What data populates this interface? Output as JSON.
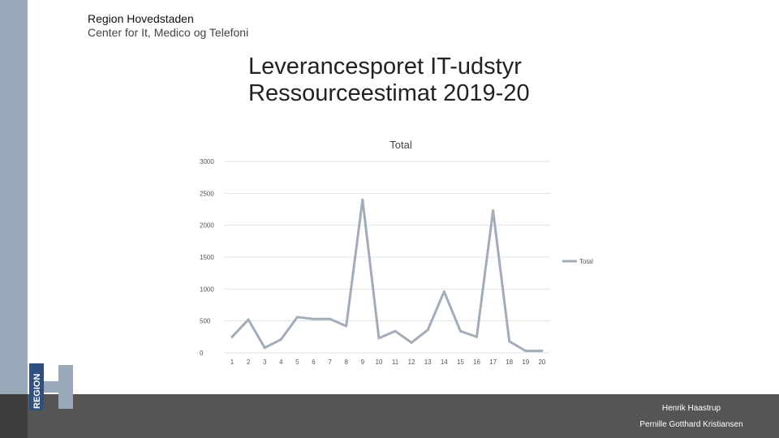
{
  "header": {
    "org_name": "Region Hovedstaden",
    "department": "Center for It, Medico og Telefoni"
  },
  "slide": {
    "title_line1": "Leverancesporet IT-udstyr",
    "title_line2": "Ressourceestimat 2019-20"
  },
  "footer": {
    "name1": "Henrik Haastrup",
    "name2": "Pernille Gotthard Kristiansen"
  },
  "logo": {
    "text": "REGION"
  },
  "colors": {
    "line": "#a2adb9",
    "grid": "#e3e3e3",
    "stripe": "#9aa9ba",
    "bar": "#555555"
  },
  "chart_data": {
    "type": "line",
    "title": "Total",
    "x": [
      1,
      2,
      3,
      4,
      5,
      6,
      7,
      8,
      9,
      10,
      11,
      12,
      13,
      14,
      15,
      16,
      17,
      18,
      19,
      20
    ],
    "series": [
      {
        "name": "Total",
        "values": [
          250,
          520,
          80,
          210,
          560,
          530,
          530,
          420,
          2400,
          230,
          340,
          160,
          360,
          960,
          340,
          250,
          2230,
          180,
          30,
          30
        ]
      }
    ],
    "yticks": [
      0,
      500,
      1000,
      1500,
      2000,
      2500,
      3000
    ],
    "ylim": [
      0,
      3000
    ],
    "grid": true,
    "legend": "right"
  }
}
